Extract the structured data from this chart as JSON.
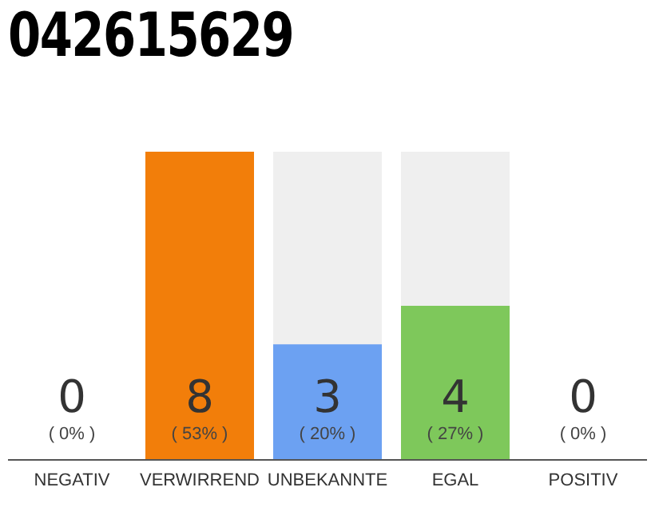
{
  "chart_data": {
    "type": "bar",
    "title": "042615629",
    "data_labels": true,
    "categories": [
      "NEGATIV",
      "VERWIRREND",
      "UNBEKANNTE",
      "EGAL",
      "POSITIV"
    ],
    "values": [
      0,
      8,
      3,
      4,
      0
    ],
    "colors": [
      "#cccccc",
      "#f27e0a",
      "#6ca1f2",
      "#7ec85b",
      "#cccccc"
    ],
    "annotations": [
      "( 0% )",
      "( 53% )",
      "( 20% )",
      "( 27% )",
      "( 0% )"
    ]
  }
}
